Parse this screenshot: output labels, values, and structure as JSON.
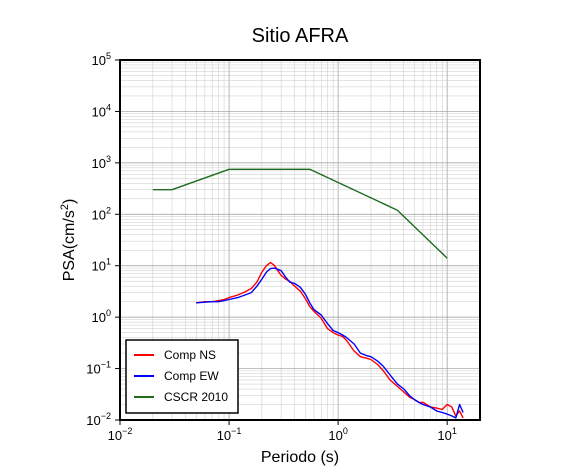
{
  "chart_data": {
    "type": "line",
    "title": "Sitio AFRA",
    "xlabel": "Periodo (s)",
    "ylabel_main": "PSA(cm/s",
    "ylabel_sup": "2",
    "ylabel_close": ")",
    "xscale": "log",
    "yscale": "log",
    "xlim": [
      0.01,
      20
    ],
    "ylim": [
      0.01,
      100000
    ],
    "grid": true,
    "legend_position": "bottom-left",
    "x_ticks": [
      {
        "base": "10",
        "exp": "−2",
        "value": 0.01
      },
      {
        "base": "10",
        "exp": "−1",
        "value": 0.1
      },
      {
        "base": "10",
        "exp": "0",
        "value": 1
      },
      {
        "base": "10",
        "exp": "1",
        "value": 10
      }
    ],
    "y_ticks": [
      {
        "base": "10",
        "exp": "−2",
        "value": 0.01
      },
      {
        "base": "10",
        "exp": "−1",
        "value": 0.1
      },
      {
        "base": "10",
        "exp": "0",
        "value": 1
      },
      {
        "base": "10",
        "exp": "1",
        "value": 10
      },
      {
        "base": "10",
        "exp": "2",
        "value": 100
      },
      {
        "base": "10",
        "exp": "3",
        "value": 1000
      },
      {
        "base": "10",
        "exp": "4",
        "value": 10000
      },
      {
        "base": "10",
        "exp": "5",
        "value": 100000
      }
    ],
    "series": [
      {
        "name": "Comp NS",
        "color": "#ff0000",
        "x": [
          0.05,
          0.06,
          0.07,
          0.08,
          0.09,
          0.1,
          0.12,
          0.14,
          0.16,
          0.18,
          0.2,
          0.22,
          0.24,
          0.26,
          0.28,
          0.3,
          0.33,
          0.36,
          0.4,
          0.45,
          0.5,
          0.55,
          0.6,
          0.7,
          0.8,
          0.9,
          1.0,
          1.1,
          1.2,
          1.4,
          1.6,
          1.8,
          2.0,
          2.3,
          2.6,
          3.0,
          3.5,
          4.0,
          4.5,
          5.0,
          5.5,
          6.0,
          7.0,
          8.0,
          9.0,
          10.0,
          11.0,
          12.0,
          13.0,
          14.0
        ],
        "y": [
          1.9,
          2.0,
          2.0,
          2.1,
          2.2,
          2.4,
          2.7,
          3.1,
          3.6,
          4.8,
          7.5,
          10.0,
          11.5,
          10.2,
          8.0,
          6.5,
          5.5,
          5.0,
          4.0,
          3.2,
          2.3,
          1.6,
          1.3,
          0.95,
          0.6,
          0.5,
          0.45,
          0.42,
          0.35,
          0.22,
          0.17,
          0.16,
          0.15,
          0.12,
          0.09,
          0.06,
          0.045,
          0.035,
          0.028,
          0.025,
          0.022,
          0.022,
          0.018,
          0.017,
          0.016,
          0.02,
          0.018,
          0.012,
          0.015,
          0.011
        ]
      },
      {
        "name": "Comp EW",
        "color": "#0000ff",
        "x": [
          0.05,
          0.06,
          0.07,
          0.08,
          0.09,
          0.1,
          0.12,
          0.14,
          0.16,
          0.18,
          0.2,
          0.22,
          0.24,
          0.26,
          0.28,
          0.3,
          0.33,
          0.36,
          0.4,
          0.45,
          0.5,
          0.55,
          0.6,
          0.7,
          0.8,
          0.9,
          1.0,
          1.1,
          1.2,
          1.4,
          1.6,
          1.8,
          2.0,
          2.3,
          2.6,
          3.0,
          3.5,
          4.0,
          4.5,
          5.0,
          5.5,
          6.0,
          7.0,
          8.0,
          9.0,
          10.0,
          11.0,
          12.0,
          13.0,
          14.0
        ],
        "y": [
          1.9,
          1.95,
          2.0,
          2.0,
          2.1,
          2.2,
          2.4,
          2.7,
          3.0,
          4.0,
          5.5,
          7.5,
          8.8,
          9.0,
          8.5,
          8.0,
          6.0,
          4.8,
          4.5,
          3.8,
          2.8,
          1.9,
          1.4,
          1.1,
          0.75,
          0.55,
          0.5,
          0.45,
          0.4,
          0.3,
          0.2,
          0.18,
          0.17,
          0.14,
          0.11,
          0.075,
          0.05,
          0.04,
          0.03,
          0.025,
          0.022,
          0.02,
          0.018,
          0.015,
          0.014,
          0.013,
          0.012,
          0.011,
          0.02,
          0.014
        ]
      },
      {
        "name": "CSCR 2010",
        "color": "#1e6b1e",
        "x": [
          0.02,
          0.03,
          0.1,
          0.55,
          3.5,
          10.0
        ],
        "y": [
          300,
          300,
          750,
          750,
          120,
          14
        ]
      }
    ]
  }
}
